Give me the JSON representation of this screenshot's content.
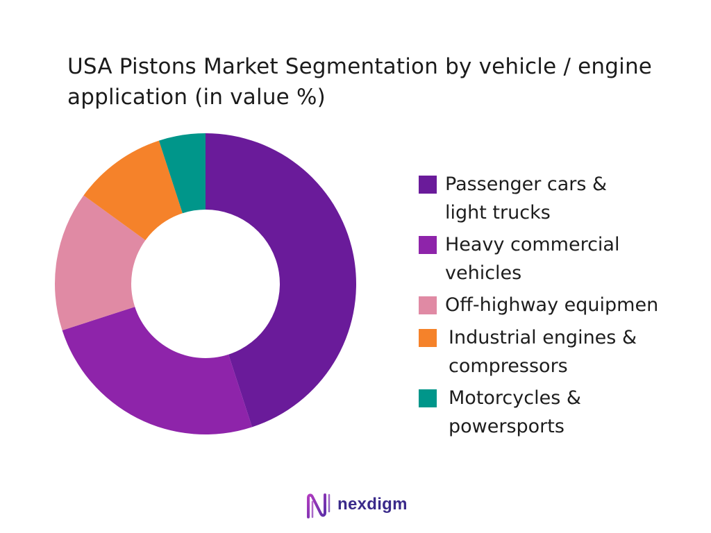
{
  "title": "USA Pistons Market Segmentation by vehicle / engine application (in value %)",
  "brand": {
    "name": "nexdigm",
    "icon": "nexdigm-logo-icon"
  },
  "colors": {
    "passenger": "#6a1b9a",
    "heavy": "#8e24aa",
    "offhighway": "#e08aa4",
    "industrial": "#f5822a",
    "motorcycles": "#00968a"
  },
  "chart_data": {
    "type": "pie",
    "variant": "donut",
    "title": "USA Pistons Market Segmentation by vehicle / engine application (in value %)",
    "legend_position": "right",
    "start_angle": "12 o'clock, clockwise",
    "categories": [
      "Passenger cars & light trucks",
      "Heavy commercial vehicles",
      "Off-highway equipmen",
      "Industrial engines & compressors",
      "Motorcycles & powersports"
    ],
    "values": [
      45,
      25,
      15,
      10,
      5
    ],
    "legend_labels": [
      "Passenger cars &\nlight trucks",
      "Heavy commercial\nvehicles",
      "Off-highway equipmen",
      "Industrial engines &\ncompressors",
      "Motorcycles &\npowersports"
    ],
    "colors": [
      "#6a1b9a",
      "#8e24aa",
      "#e08aa4",
      "#f5822a",
      "#00968a"
    ]
  }
}
